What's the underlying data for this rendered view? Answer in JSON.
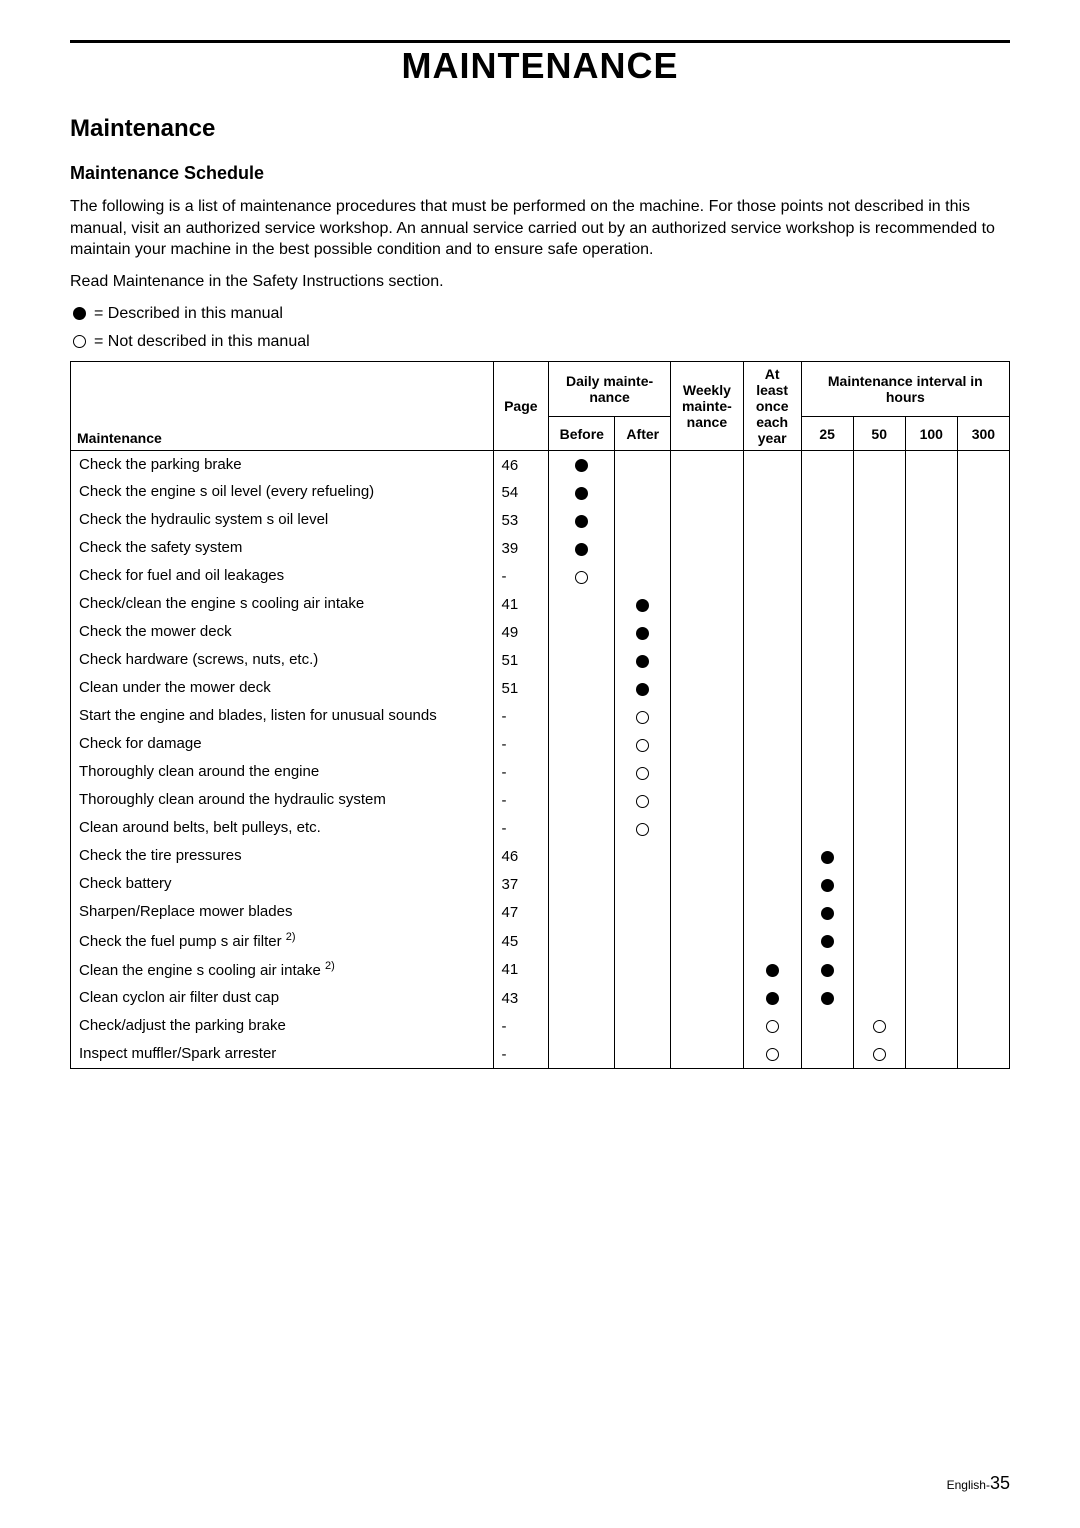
{
  "page_title": "MAINTENANCE",
  "section_title": "Maintenance",
  "subsection_title": "Maintenance Schedule",
  "intro_paragraph": "The following is a list of maintenance procedures that must be performed on the machine. For those points not described in this manual, visit an authorized service workshop. An annual service carried out by an authorized service workshop is recommended to maintain your machine in the best possible condition and to ensure safe operation.",
  "read_line": "Read  Maintenance  in the  Safety Instructions  section.",
  "legend": {
    "filled": "= Described in this manual",
    "hollow": "= Not described in this manual"
  },
  "headers": {
    "maintenance": "Maintenance",
    "page": "Page",
    "daily": "Daily mainte- nance",
    "before": "Before",
    "after": "After",
    "weekly": "Weekly mainte- nance",
    "atleast": "At least once each year",
    "interval": "Maintenance interval in hours",
    "h25": "25",
    "h50": "50",
    "h100": "100",
    "h300": "300"
  },
  "rows": [
    {
      "task": "Check the parking brake",
      "page": "46",
      "before": "f"
    },
    {
      "task": "Check the engine s oil level (every refueling)",
      "page": "54",
      "before": "f"
    },
    {
      "task": "Check the hydraulic system s oil level",
      "page": "53",
      "before": "f"
    },
    {
      "task": "Check the safety system",
      "page": "39",
      "before": "f"
    },
    {
      "task": "Check for fuel and oil leakages",
      "page": "-",
      "before": "h"
    },
    {
      "task": "Check/clean the engine s cooling air intake",
      "page": "41",
      "after": "f"
    },
    {
      "task": "Check the mower deck",
      "page": "49",
      "after": "f"
    },
    {
      "task": "Check hardware (screws, nuts, etc.)",
      "page": "51",
      "after": "f"
    },
    {
      "task": "Clean under the mower deck",
      "page": "51",
      "after": "f"
    },
    {
      "task": "Start the engine and blades, listen for unusual sounds",
      "page": "-",
      "after": "h"
    },
    {
      "task": "Check for damage",
      "page": "-",
      "after": "h"
    },
    {
      "task": "Thoroughly clean around the engine",
      "page": "-",
      "after": "h"
    },
    {
      "task": "Thoroughly clean around the hydraulic system",
      "page": "-",
      "after": "h"
    },
    {
      "task": "Clean around belts, belt pulleys, etc.",
      "page": "-",
      "after": "h"
    },
    {
      "task": "Check the tire pressures",
      "page": "46",
      "h25": "f"
    },
    {
      "task": "Check battery",
      "page": "37",
      "h25": "f"
    },
    {
      "task": "Sharpen/Replace mower blades",
      "page": "47",
      "h25": "f"
    },
    {
      "task": "Check the fuel pump s air filter",
      "sup": "2)",
      "page": "45",
      "h25": "f"
    },
    {
      "task": "Clean the engine s cooling air intake",
      "sup": "2)",
      "page": "41",
      "year": "f",
      "h25": "f"
    },
    {
      "task": "Clean cyclon air filter dust cap",
      "page": "43",
      "year": "f",
      "h25": "f"
    },
    {
      "task": "Check/adjust the parking brake",
      "page": "-",
      "year": "h",
      "h50": "h"
    },
    {
      "task": "Inspect muffler/Spark arrester",
      "page": "-",
      "year": "h",
      "h50": "h"
    }
  ],
  "footer": {
    "lang": "English-",
    "page": "35"
  },
  "colors": {
    "text": "#000000",
    "background": "#ffffff",
    "border": "#000000"
  }
}
